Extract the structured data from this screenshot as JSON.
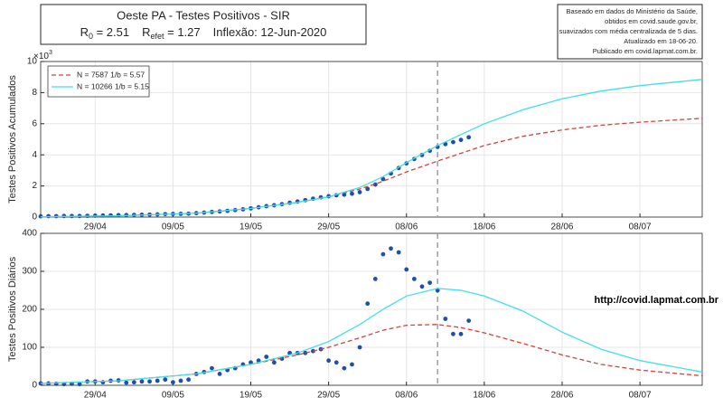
{
  "title": "Oeste PA - Testes Positivos - SIR",
  "subtitle_parts": [
    {
      "text": "R",
      "sub": "0",
      "rest": " = 2.51"
    },
    {
      "text": "R",
      "sub": "efet",
      "rest": " = 1.27"
    }
  ],
  "inflection": "Inflexão: 12-Jun-2020",
  "note_lines": [
    "Baseado em dados do Ministério da Saúde,",
    "obtidos em covid.saude.gov.br,",
    "suavizados com média centralizada de 5 dias.",
    "Atualizado em 18-06-20.",
    "Publicado em covid.lapmat.com.br."
  ],
  "watermark": "http://covid.lapmat.com.br",
  "chart_data": [
    {
      "type": "line",
      "ylabel": "Testes Positivos Acumulados",
      "y_exponent_base": "×10",
      "y_exponent": "3",
      "xlim": [
        "22/04",
        "16/07"
      ],
      "xticks": [
        "29/04",
        "09/05",
        "19/05",
        "29/05",
        "08/06",
        "18/06",
        "28/06",
        "08/07"
      ],
      "ylim": [
        0,
        10
      ],
      "yticks": [
        0,
        2,
        4,
        6,
        8,
        10
      ],
      "grid": true,
      "legend": "upper left",
      "vline": "12/06",
      "series": [
        {
          "color": "#1f4fa8",
          "style": "dots",
          "x": [
            "22/04",
            "23/04",
            "24/04",
            "25/04",
            "26/04",
            "27/04",
            "28/04",
            "29/04",
            "30/04",
            "01/05",
            "02/05",
            "03/05",
            "04/05",
            "05/05",
            "06/05",
            "07/05",
            "08/05",
            "09/05",
            "10/05",
            "11/05",
            "12/05",
            "13/05",
            "14/05",
            "15/05",
            "16/05",
            "17/05",
            "18/05",
            "19/05",
            "20/05",
            "21/05",
            "22/05",
            "23/05",
            "24/05",
            "25/05",
            "26/05",
            "27/05",
            "28/05",
            "29/05",
            "30/05",
            "31/05",
            "01/06",
            "02/06",
            "03/06",
            "04/06",
            "05/06",
            "06/06",
            "07/06",
            "08/06",
            "09/06",
            "10/06",
            "11/06",
            "12/06",
            "13/06",
            "14/06",
            "15/06",
            "16/06"
          ],
          "values": [
            0.05,
            0.06,
            0.06,
            0.07,
            0.07,
            0.07,
            0.08,
            0.09,
            0.1,
            0.11,
            0.12,
            0.13,
            0.14,
            0.15,
            0.16,
            0.17,
            0.19,
            0.2,
            0.21,
            0.22,
            0.25,
            0.29,
            0.33,
            0.36,
            0.4,
            0.45,
            0.5,
            0.56,
            0.63,
            0.7,
            0.76,
            0.83,
            0.92,
            1.0,
            1.09,
            1.18,
            1.27,
            1.34,
            1.4,
            1.44,
            1.5,
            1.6,
            1.81,
            2.09,
            2.44,
            2.8,
            3.15,
            3.45,
            3.73,
            3.99,
            4.26,
            4.51,
            4.69,
            4.82,
            4.96,
            5.13
          ]
        },
        {
          "name": "N = 7587 1/b = 5.57",
          "color": "#d9413a",
          "style": "dashed",
          "x": [
            "22/04",
            "02/05",
            "12/05",
            "19/05",
            "25/05",
            "29/05",
            "02/06",
            "05/06",
            "08/06",
            "12/06",
            "15/06",
            "18/06",
            "23/06",
            "28/06",
            "03/07",
            "08/07",
            "16/07"
          ],
          "values": [
            0.02,
            0.08,
            0.25,
            0.55,
            0.95,
            1.3,
            1.8,
            2.3,
            2.9,
            3.6,
            4.1,
            4.6,
            5.2,
            5.6,
            5.9,
            6.1,
            6.35
          ]
        },
        {
          "name": "N = 10266 1/b = 5.15",
          "color": "#3fe0e8",
          "style": "solid",
          "x": [
            "22/04",
            "02/05",
            "12/05",
            "19/05",
            "25/05",
            "29/05",
            "02/06",
            "05/06",
            "08/06",
            "12/06",
            "15/06",
            "18/06",
            "23/06",
            "28/06",
            "03/07",
            "08/07",
            "16/07"
          ],
          "values": [
            0.02,
            0.08,
            0.25,
            0.55,
            0.95,
            1.3,
            1.9,
            2.6,
            3.5,
            4.6,
            5.3,
            6.0,
            6.9,
            7.6,
            8.1,
            8.45,
            8.85
          ]
        }
      ]
    },
    {
      "type": "line",
      "ylabel": "Testes Positivos Diários",
      "xlim": [
        "22/04",
        "16/07"
      ],
      "xticks": [
        "29/04",
        "09/05",
        "19/05",
        "29/05",
        "08/06",
        "18/06",
        "28/06",
        "08/07"
      ],
      "ylim": [
        0,
        400
      ],
      "yticks": [
        0,
        100,
        200,
        300,
        400
      ],
      "grid": true,
      "vline": "12/06",
      "series": [
        {
          "color": "#1f4fa8",
          "style": "dots",
          "x": [
            "22/04",
            "23/04",
            "24/04",
            "25/04",
            "26/04",
            "27/04",
            "28/04",
            "29/04",
            "30/04",
            "01/05",
            "02/05",
            "03/05",
            "04/05",
            "05/05",
            "06/05",
            "07/05",
            "08/05",
            "09/05",
            "10/05",
            "11/05",
            "12/05",
            "13/05",
            "14/05",
            "15/05",
            "16/05",
            "17/05",
            "18/05",
            "19/05",
            "20/05",
            "21/05",
            "22/05",
            "23/05",
            "24/05",
            "25/05",
            "26/05",
            "27/05",
            "28/05",
            "29/05",
            "30/05",
            "31/05",
            "01/06",
            "02/06",
            "03/06",
            "04/06",
            "05/06",
            "06/06",
            "07/06",
            "08/06",
            "09/06",
            "10/06",
            "11/06",
            "12/06",
            "13/06",
            "14/06",
            "15/06",
            "16/06"
          ],
          "values": [
            5,
            5,
            4,
            3,
            4,
            3,
            10,
            10,
            8,
            12,
            13,
            7,
            8,
            10,
            10,
            12,
            15,
            8,
            12,
            15,
            30,
            35,
            45,
            30,
            40,
            45,
            55,
            60,
            65,
            75,
            60,
            70,
            85,
            85,
            85,
            90,
            95,
            65,
            60,
            45,
            55,
            100,
            215,
            280,
            345,
            360,
            350,
            305,
            280,
            260,
            270,
            250,
            175,
            135,
            135,
            170
          ]
        },
        {
          "color": "#d9413a",
          "style": "dashed",
          "x": [
            "22/04",
            "02/05",
            "12/05",
            "19/05",
            "25/05",
            "29/05",
            "02/06",
            "05/06",
            "08/06",
            "12/06",
            "15/06",
            "18/06",
            "23/06",
            "28/06",
            "03/07",
            "08/07",
            "16/07"
          ],
          "values": [
            5,
            12,
            30,
            55,
            80,
            100,
            125,
            145,
            158,
            160,
            152,
            138,
            110,
            80,
            55,
            40,
            25
          ]
        },
        {
          "color": "#3fe0e8",
          "style": "solid",
          "x": [
            "22/04",
            "02/05",
            "12/05",
            "19/05",
            "25/05",
            "29/05",
            "02/06",
            "05/06",
            "08/06",
            "12/06",
            "15/06",
            "18/06",
            "23/06",
            "28/06",
            "03/07",
            "08/07",
            "16/07"
          ],
          "values": [
            5,
            12,
            30,
            55,
            85,
            115,
            160,
            200,
            235,
            255,
            250,
            235,
            195,
            140,
            95,
            65,
            35
          ]
        }
      ]
    }
  ]
}
